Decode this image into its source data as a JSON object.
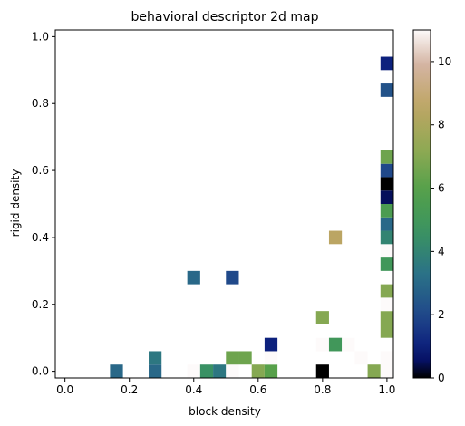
{
  "chart_data": {
    "type": "heatmap",
    "title": "behavioral descriptor 2d map",
    "xlabel": "block density",
    "ylabel": "rigid density",
    "xlim": [
      -0.03,
      1.02
    ],
    "ylim": [
      -0.02,
      1.02
    ],
    "xticks": [
      "0.0",
      "0.2",
      "0.4",
      "0.6",
      "0.8",
      "1.0"
    ],
    "yticks": [
      "0.0",
      "0.2",
      "0.4",
      "0.6",
      "0.8",
      "1.0"
    ],
    "colorbar": {
      "min": 0,
      "max": 11,
      "ticks": [
        "0",
        "2",
        "4",
        "6",
        "8",
        "10"
      ],
      "colormap": "gist_earth"
    },
    "bin_size": 0.04,
    "cells": [
      {
        "x": 0.16,
        "y": 0.0,
        "v": 3
      },
      {
        "x": 0.28,
        "y": 0.0,
        "v": 3
      },
      {
        "x": 0.28,
        "y": 0.04,
        "v": 3.5
      },
      {
        "x": 0.4,
        "y": 0.0,
        "v": 11
      },
      {
        "x": 0.44,
        "y": 0.0,
        "v": 4.5
      },
      {
        "x": 0.48,
        "y": 0.0,
        "v": 3.5
      },
      {
        "x": 0.52,
        "y": 0.0,
        "v": 11
      },
      {
        "x": 0.52,
        "y": 0.04,
        "v": 6.5
      },
      {
        "x": 0.56,
        "y": 0.04,
        "v": 6.5
      },
      {
        "x": 0.6,
        "y": 0.0,
        "v": 7
      },
      {
        "x": 0.64,
        "y": 0.0,
        "v": 6
      },
      {
        "x": 0.64,
        "y": 0.04,
        "v": 11
      },
      {
        "x": 0.64,
        "y": 0.08,
        "v": 1
      },
      {
        "x": 0.8,
        "y": 0.0,
        "v": 0
      },
      {
        "x": 0.8,
        "y": 0.08,
        "v": 11
      },
      {
        "x": 0.84,
        "y": 0.08,
        "v": 5
      },
      {
        "x": 0.88,
        "y": 0.08,
        "v": 11
      },
      {
        "x": 0.8,
        "y": 0.16,
        "v": 7
      },
      {
        "x": 0.92,
        "y": 0.04,
        "v": 11
      },
      {
        "x": 0.96,
        "y": 0.0,
        "v": 7
      },
      {
        "x": 1.0,
        "y": 0.0,
        "v": 11
      },
      {
        "x": 1.0,
        "y": 0.04,
        "v": 11
      },
      {
        "x": 1.0,
        "y": 0.12,
        "v": 7
      },
      {
        "x": 1.0,
        "y": 0.16,
        "v": 7
      },
      {
        "x": 1.0,
        "y": 0.2,
        "v": 11
      },
      {
        "x": 1.0,
        "y": 0.24,
        "v": 7
      },
      {
        "x": 1.0,
        "y": 0.32,
        "v": 5
      },
      {
        "x": 1.0,
        "y": 0.36,
        "v": 11
      },
      {
        "x": 1.0,
        "y": 0.4,
        "v": 4
      },
      {
        "x": 1.0,
        "y": 0.44,
        "v": 3
      },
      {
        "x": 1.0,
        "y": 0.48,
        "v": 5.5
      },
      {
        "x": 1.0,
        "y": 0.52,
        "v": 0.5
      },
      {
        "x": 1.0,
        "y": 0.56,
        "v": 0
      },
      {
        "x": 1.0,
        "y": 0.6,
        "v": 2
      },
      {
        "x": 1.0,
        "y": 0.64,
        "v": 6.5
      },
      {
        "x": 1.0,
        "y": 0.84,
        "v": 2.3
      },
      {
        "x": 1.0,
        "y": 0.92,
        "v": 1
      },
      {
        "x": 0.4,
        "y": 0.28,
        "v": 3
      },
      {
        "x": 0.52,
        "y": 0.28,
        "v": 2
      },
      {
        "x": 0.84,
        "y": 0.4,
        "v": 8.5
      }
    ]
  }
}
